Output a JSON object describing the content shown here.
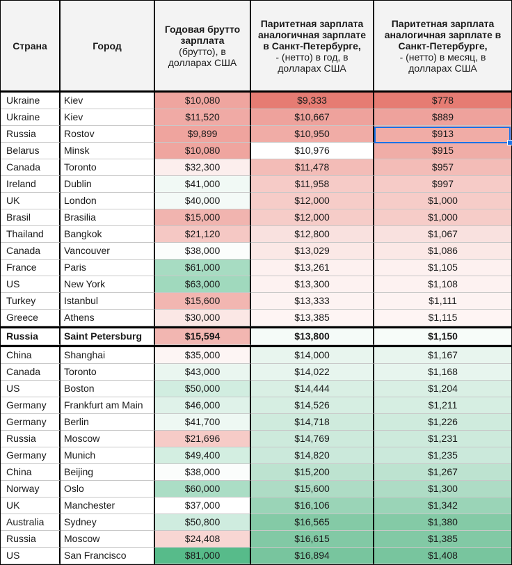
{
  "headers": {
    "country": "Страна",
    "city": "Город",
    "gross_bold": "Годовая брутто зарплата",
    "gross_rest": "(брутто), в долларах США",
    "year_bold": "Паритетная зарплата аналогичная зарплате в Санкт-Петербурге,",
    "year_rest": "- (нетто) в год, в долларах США",
    "month_bold": "Паритетная зарплата аналогичная зарплате в Санкт-Петербурге,",
    "month_rest": "- (нетто) в месяц, в долларах США"
  },
  "colors": {
    "red_strong": "#e67c73",
    "green_strong": "#57bb8a",
    "white": "#ffffff",
    "selection": "#1a73e8"
  },
  "rows": [
    {
      "country": "Ukraine",
      "city": "Kiev",
      "gross": "$10,080",
      "year": "$9,333",
      "month": "$778",
      "gh": "#efa59f",
      "yh": "#e67c73",
      "mh": "#e67c73"
    },
    {
      "country": "Ukraine",
      "city": "Kiev",
      "gross": "$11,520",
      "year": "$10,667",
      "month": "$889",
      "gh": "#f0aaa5",
      "yh": "#eea29c",
      "mh": "#eea29c"
    },
    {
      "country": "Russia",
      "city": "Rostov",
      "gross": "$9,899",
      "year": "$10,950",
      "month": "$913",
      "gh": "#efa49e",
      "yh": "#f0aca6",
      "mh": "#f0aca6"
    },
    {
      "country": "Belarus",
      "city": "Minsk",
      "gross": "$10,080",
      "year": "$10,976",
      "month": "$915",
      "gh": "#efa59f",
      "yh": "#f0acа6",
      "mh": "#f0ada7"
    },
    {
      "country": "Canada",
      "city": "Toronto",
      "gross": "$32,300",
      "year": "$11,478",
      "month": "$957",
      "gh": "#fceeed",
      "yh": "#f3bcb7",
      "mh": "#f3bcb7"
    },
    {
      "country": "Ireland",
      "city": "Dublin",
      "gross": "$41,000",
      "year": "$11,958",
      "month": "$997",
      "gh": "#f1f9f5",
      "yh": "#f6cbc7",
      "mh": "#f6cbc7"
    },
    {
      "country": "UK",
      "city": "London",
      "gross": "$40,000",
      "year": "$12,000",
      "month": "$1,000",
      "gh": "#f4faf7",
      "yh": "#f6ccc8",
      "mh": "#f6ccc8"
    },
    {
      "country": "Brasil",
      "city": "Brasilia",
      "gross": "$15,000",
      "year": "$12,000",
      "month": "$1,000",
      "gh": "#f1b4af",
      "yh": "#f6ccc8",
      "mh": "#f6ccc8"
    },
    {
      "country": "Thailand",
      "city": "Bangkok",
      "gross": "$21,120",
      "year": "$12,800",
      "month": "$1,067",
      "gh": "#f5c8c4",
      "yh": "#f9e1df",
      "mh": "#f9e1df"
    },
    {
      "country": "Canada",
      "city": "Vancouver",
      "gross": "$38,000",
      "year": "$13,029",
      "month": "$1,086",
      "gh": "#fbfdfc",
      "yh": "#fbe8e6",
      "mh": "#fbe8e6"
    },
    {
      "country": "France",
      "city": "Paris",
      "gross": "$61,000",
      "year": "$13,261",
      "month": "$1,105",
      "gh": "#a7dcc2",
      "yh": "#fdf1f0",
      "mh": "#fdf1f0"
    },
    {
      "country": "US",
      "city": "New York",
      "gross": "$63,000",
      "year": "$13,300",
      "month": "$1,108",
      "gh": "#a0d9bd",
      "yh": "#fdf2f1",
      "mh": "#fdf2f1"
    },
    {
      "country": "Turkey",
      "city": "Istanbul",
      "gross": "$15,600",
      "year": "$13,333",
      "month": "$1,111",
      "gh": "#f2b6b1",
      "yh": "#fdf3f2",
      "mh": "#fdf3f2"
    },
    {
      "country": "Greece",
      "city": "Athens",
      "gross": "$30,000",
      "year": "$13,385",
      "month": "$1,115",
      "gh": "#fbe7e5",
      "yh": "#fef5f4",
      "mh": "#fef5f4"
    }
  ],
  "spb_row": {
    "country": "Russia",
    "city": "Saint Petersburg",
    "gross": "$15,594",
    "year": "$13,800",
    "month": "$1,150",
    "gh": "#f2b6b1",
    "yh": "#f5fbf8",
    "mh": "#f7fcf9"
  },
  "rows2": [
    {
      "country": "China",
      "city": "Shanghai",
      "gross": "$35,000",
      "year": "$14,000",
      "month": "$1,167",
      "gh": "#fdf5f4",
      "yh": "#e8f5ee",
      "mh": "#e8f5ee"
    },
    {
      "country": "Canada",
      "city": "Toronto",
      "gross": "$43,000",
      "year": "$14,022",
      "month": "$1,168",
      "gh": "#eaf6f0",
      "yh": "#e7f5ee",
      "mh": "#e7f5ee"
    },
    {
      "country": "US",
      "city": "Boston",
      "gross": "$50,000",
      "year": "$14,444",
      "month": "$1,204",
      "gh": "#d1ede0",
      "yh": "#d9efe4",
      "mh": "#d9efe4"
    },
    {
      "country": "Germany",
      "city": "Frankfurt am Main",
      "gross": "$46,000",
      "year": "$14,526",
      "month": "$1,211",
      "gh": "#dff2e9",
      "yh": "#d6eee2",
      "mh": "#d6eee2"
    },
    {
      "country": "Germany",
      "city": "Berlin",
      "gross": "$41,700",
      "year": "$14,718",
      "month": "$1,226",
      "gh": "#eef8f3",
      "yh": "#cfebdd",
      "mh": "#cfebdd"
    },
    {
      "country": "Russia",
      "city": "Moscow",
      "gross": "$21,696",
      "year": "$14,769",
      "month": "$1,231",
      "gh": "#f6cbc7",
      "yh": "#cdeadc",
      "mh": "#cdeadc"
    },
    {
      "country": "Germany",
      "city": "Munich",
      "gross": "$49,400",
      "year": "$14,820",
      "month": "$1,235",
      "gh": "#d3eee1",
      "yh": "#cbe9db",
      "mh": "#cbe9db"
    },
    {
      "country": "China",
      "city": "Beijing",
      "gross": "$38,000",
      "year": "$15,200",
      "month": "$1,267",
      "gh": "#fbfdfc",
      "yh": "#bde3d0",
      "mh": "#bde3d0"
    },
    {
      "country": "Norway",
      "city": "Oslo",
      "gross": "$60,000",
      "year": "$15,600",
      "month": "$1,300",
      "gh": "#abddc5",
      "yh": "#aedcc5",
      "mh": "#aedcc5"
    },
    {
      "country": "UK",
      "city": "Manchester",
      "gross": "$37,000",
      "year": "$16,106",
      "month": "$1,342",
      "gh": "#ffffff",
      "yh": "#9ad4b7",
      "mh": "#9ad4b7"
    },
    {
      "country": "Australia",
      "city": "Sydney",
      "gross": "$50,800",
      "year": "$16,565",
      "month": "$1,380",
      "gh": "#cfecdf",
      "yh": "#84caa6",
      "mh": "#84caa6"
    },
    {
      "country": "Russia",
      "city": "Moscow",
      "gross": "$24,408",
      "year": "$16,615",
      "month": "$1,385",
      "gh": "#f8d6d3",
      "yh": "#82c9a5",
      "mh": "#82c9a5"
    },
    {
      "country": "US",
      "city": "San Francisco",
      "gross": "$81,000",
      "year": "$16,894",
      "month": "$1,408",
      "gh": "#57bb8a",
      "yh": "#78c59e",
      "mh": "#78c59e"
    }
  ]
}
